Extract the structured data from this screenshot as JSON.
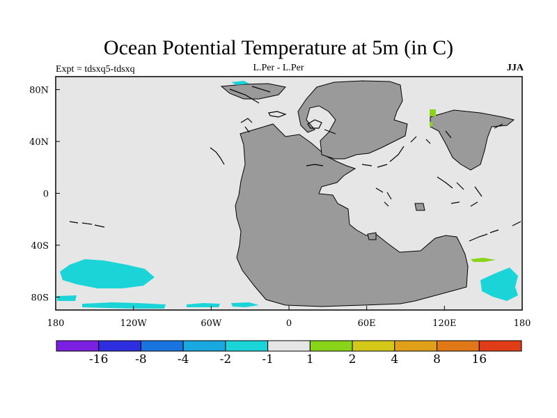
{
  "chart_data": {
    "type": "heatmap",
    "title": "Ocean Potential Temperature at 5m (in C)",
    "left_label": "Expt = tdsxq5-tdsxq",
    "center_label": "L.Per - L.Per",
    "right_label": "JJA",
    "x_ticks": [
      "180",
      "120W",
      "60W",
      "0",
      "60E",
      "120E",
      "180"
    ],
    "y_ticks": [
      "80N",
      "40N",
      "0",
      "40S",
      "80S"
    ],
    "colorbar": {
      "colors": [
        "#7b1fe0",
        "#2e2ee0",
        "#1a74e0",
        "#1aa8e0",
        "#1ad4d8",
        "#e6e6e6",
        "#88d418",
        "#d4c818",
        "#e0a018",
        "#e07818",
        "#e03c18"
      ],
      "labels": [
        "-16",
        "-8",
        "-4",
        "-2",
        "-1",
        "1",
        "2",
        "4",
        "8",
        "16"
      ]
    }
  }
}
